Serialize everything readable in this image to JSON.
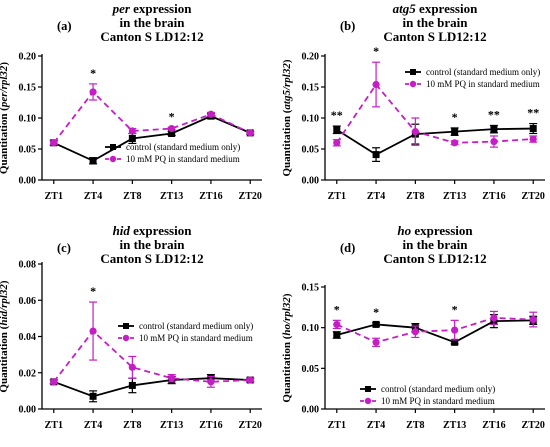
{
  "colors": {
    "control": "#000000",
    "pq": "#c41ec4",
    "axis": "#000000"
  },
  "chart_data": [
    {
      "type": "line",
      "panel_label": "(a)",
      "title_gene": "per",
      "title_suffix": " expression",
      "title_line2": "in the brain",
      "title_line3": "Canton S LD12:12",
      "ylabel_prefix": "Quantitation (",
      "ylabel_gene": "per/rpl32",
      "ylabel_suffix": ")",
      "categories": [
        "ZT1",
        "ZT4",
        "ZT8",
        "ZT13",
        "ZT16",
        "ZT20"
      ],
      "ylim": [
        0,
        0.2
      ],
      "yticks": [
        "0.00",
        "0.05",
        "0.10",
        "0.15",
        "0.20"
      ],
      "series": [
        {
          "name": "control (standard medium only)",
          "values": [
            0.06,
            0.031,
            0.067,
            0.075,
            0.103,
            0.076
          ],
          "errors": [
            0.004,
            0.005,
            0.008,
            0.003,
            0.004,
            0.002
          ]
        },
        {
          "name": "10 mM PQ in standard medium",
          "values": [
            0.06,
            0.142,
            0.079,
            0.083,
            0.106,
            0.076
          ],
          "errors": [
            0.003,
            0.013,
            0.004,
            0.002,
            0.003,
            0.002
          ]
        }
      ],
      "significance": [
        {
          "category": "ZT4",
          "label": "*"
        },
        {
          "category": "ZT13",
          "label": "*"
        }
      ],
      "legend_position": "bottom-right"
    },
    {
      "type": "line",
      "panel_label": "(b)",
      "title_gene": "atg5",
      "title_suffix": " expression",
      "title_line2": "in the brain",
      "title_line3": "Canton S LD12:12",
      "ylabel_prefix": "Quantitation (",
      "ylabel_gene": "atg5/rpl32",
      "ylabel_suffix": ")",
      "categories": [
        "ZT1",
        "ZT4",
        "ZT8",
        "ZT13",
        "ZT16",
        "ZT20"
      ],
      "ylim": [
        0,
        0.2
      ],
      "yticks": [
        "0.00",
        "0.05",
        "0.10",
        "0.15",
        "0.20"
      ],
      "series": [
        {
          "name": "control (standard medium only)",
          "values": [
            0.081,
            0.041,
            0.074,
            0.078,
            0.082,
            0.083
          ],
          "errors": [
            0.006,
            0.011,
            0.016,
            0.006,
            0.006,
            0.008
          ]
        },
        {
          "name": "10 mM PQ in standard medium",
          "values": [
            0.06,
            0.154,
            0.078,
            0.06,
            0.062,
            0.066
          ],
          "errors": [
            0.005,
            0.036,
            0.022,
            0.003,
            0.009,
            0.005
          ]
        }
      ],
      "significance": [
        {
          "category": "ZT1",
          "label": "**"
        },
        {
          "category": "ZT4",
          "label": "*"
        },
        {
          "category": "ZT13",
          "label": "*"
        },
        {
          "category": "ZT16",
          "label": "**"
        },
        {
          "category": "ZT20",
          "label": "**"
        }
      ],
      "legend_position": "top-right"
    },
    {
      "type": "line",
      "panel_label": "(c)",
      "title_gene": "hid",
      "title_suffix": " expression",
      "title_line2": "in the brain",
      "title_line3": "Canton S LD12:12",
      "ylabel_prefix": "Quantitation (",
      "ylabel_gene": "hid/rpl32",
      "ylabel_suffix": ")",
      "categories": [
        "ZT1",
        "ZT4",
        "ZT8",
        "ZT13",
        "ZT16",
        "ZT20"
      ],
      "ylim": [
        0,
        0.08
      ],
      "yticks": [
        "0.00",
        "0.02",
        "0.04",
        "0.06",
        "0.08"
      ],
      "series": [
        {
          "name": "control (standard medium only)",
          "values": [
            0.015,
            0.007,
            0.013,
            0.016,
            0.017,
            0.016
          ],
          "errors": [
            0.001,
            0.003,
            0.004,
            0.002,
            0.002,
            0.001
          ]
        },
        {
          "name": "10 mM PQ in standard medium",
          "values": [
            0.015,
            0.043,
            0.023,
            0.017,
            0.015,
            0.016
          ],
          "errors": [
            0.001,
            0.016,
            0.006,
            0.002,
            0.003,
            0.001
          ]
        }
      ],
      "significance": [
        {
          "category": "ZT4",
          "label": "*"
        }
      ],
      "legend_position": "top-right"
    },
    {
      "type": "line",
      "panel_label": "(d)",
      "title_gene": "ho",
      "title_suffix": " expression",
      "title_line2": "in the brain",
      "title_line3": "Canton S LD12:12",
      "ylabel_prefix": "Quantitation (",
      "ylabel_gene": "ho/rpl32",
      "ylabel_suffix": ")",
      "categories": [
        "ZT1",
        "ZT4",
        "ZT8",
        "ZT13",
        "ZT16",
        "ZT20"
      ],
      "ylim": [
        0,
        0.15
      ],
      "yticks": [
        "0.00",
        "0.05",
        "0.10",
        "0.15"
      ],
      "series": [
        {
          "name": "control (standard medium only)",
          "values": [
            0.091,
            0.104,
            0.1,
            0.082,
            0.108,
            0.109
          ],
          "errors": [
            0.004,
            0.002,
            0.005,
            0.002,
            0.008,
            0.005
          ]
        },
        {
          "name": "10 mM PQ in standard medium",
          "values": [
            0.104,
            0.082,
            0.095,
            0.097,
            0.112,
            0.11
          ],
          "errors": [
            0.005,
            0.005,
            0.007,
            0.012,
            0.008,
            0.009
          ]
        }
      ],
      "significance": [
        {
          "category": "ZT1",
          "label": "*"
        },
        {
          "category": "ZT4",
          "label": "*"
        },
        {
          "category": "ZT13",
          "label": "*"
        }
      ],
      "legend_position": "bottom-center"
    }
  ]
}
